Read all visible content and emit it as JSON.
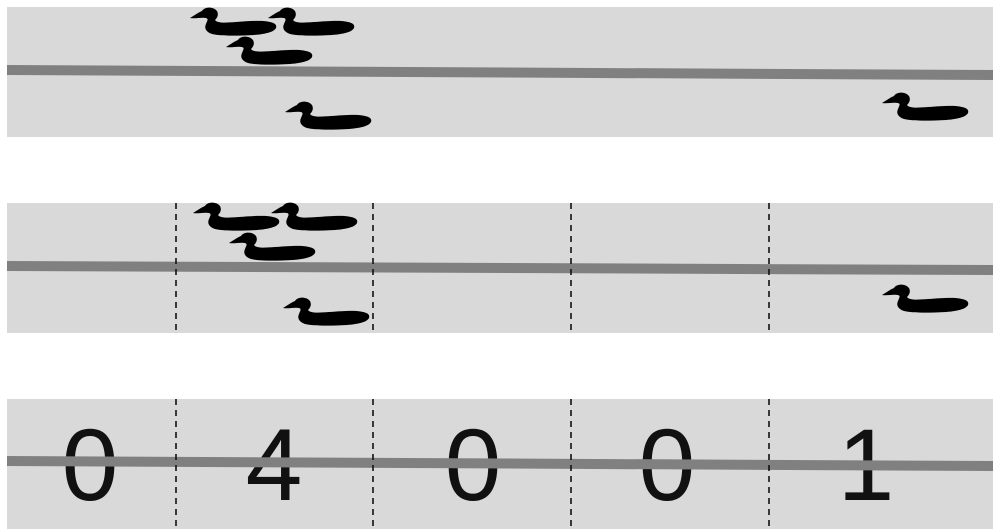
{
  "colors": {
    "panel": "#d9d9d9",
    "line": "#808080",
    "duck": "#000000",
    "divider": "#111111",
    "background": "#ffffff"
  },
  "duck_icon": "duck-silhouette-icon",
  "panels": [
    {
      "id": "raw-ducks",
      "duck_count": 5,
      "has_dividers": false
    },
    {
      "id": "segmented-ducks",
      "duck_count": 5,
      "has_dividers": true,
      "segments": 5
    },
    {
      "id": "counts",
      "has_dividers": true,
      "segments": 5
    }
  ],
  "counts": [
    "0",
    "4",
    "0",
    "0",
    "1"
  ]
}
